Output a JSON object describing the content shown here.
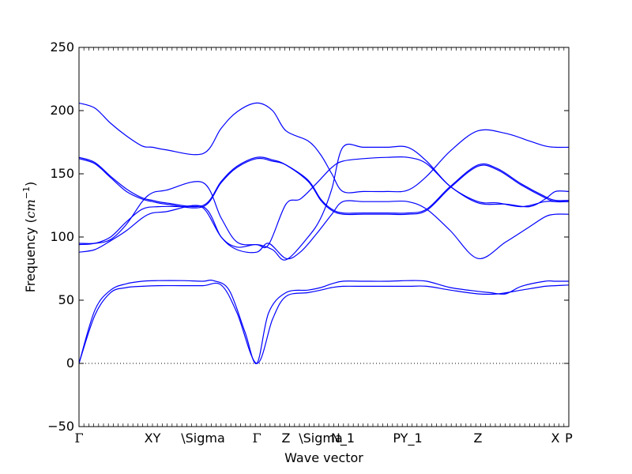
{
  "chart_data": {
    "type": "line",
    "title": "",
    "xlabel": "Wave vector",
    "ylabel": "Frequency (",
    "ylabel_unit": "cm",
    "ylabel_unit_exp": "−1",
    "ylabel_close": ")",
    "ylim": [
      -50,
      250
    ],
    "yticks": [
      -50,
      0,
      50,
      100,
      150,
      200,
      250
    ],
    "ytick_labels": [
      "−50",
      "0",
      "50",
      "100",
      "150",
      "200",
      "250"
    ],
    "xlim": [
      0,
      620
    ],
    "zero_line": true,
    "line_color": "#0000ff",
    "xticks": [
      {
        "x": 0,
        "label": "Γ"
      },
      {
        "x": 93,
        "label": "XY"
      },
      {
        "x": 157,
        "label": "\\Sigma"
      },
      {
        "x": 225,
        "label": "Γ"
      },
      {
        "x": 262,
        "label": "Z"
      },
      {
        "x": 306,
        "label": "\\Sigma"
      },
      {
        "x": 334,
        "label": "N_1"
      },
      {
        "x": 416,
        "label": "PY_1"
      },
      {
        "x": 505,
        "label": "Z"
      },
      {
        "x": 603,
        "label": "X"
      },
      {
        "x": 620,
        "label": "P"
      }
    ],
    "series": [
      {
        "x": [
          0,
          20,
          40,
          60,
          80,
          100,
          130,
          157,
          180,
          200,
          225,
          245,
          262,
          290,
          306,
          320,
          334,
          360,
          390,
          416,
          440,
          470,
          505,
          530,
          560,
          590,
          603,
          620
        ],
        "values": [
          0,
          38,
          56,
          60,
          61,
          61.5,
          61.5,
          61.5,
          62,
          40,
          0,
          35,
          53,
          56,
          58,
          60,
          61,
          61,
          61,
          61,
          61,
          58,
          55,
          55,
          58,
          61,
          61.5,
          62
        ]
      },
      {
        "x": [
          0,
          20,
          40,
          60,
          80,
          100,
          130,
          157,
          170,
          190,
          210,
          225,
          240,
          262,
          290,
          306,
          320,
          334,
          360,
          390,
          416,
          440,
          470,
          505,
          520,
          540,
          560,
          590,
          603,
          620
        ],
        "values": [
          0,
          42,
          58,
          63,
          65,
          65.5,
          65.5,
          65,
          65.5,
          58,
          25,
          0,
          40,
          56,
          58,
          60,
          63,
          65,
          65,
          65,
          65.5,
          65,
          60,
          57,
          56,
          55,
          61,
          65,
          65,
          65
        ]
      },
      {
        "x": [
          0,
          20,
          40,
          60,
          80,
          93,
          110,
          157,
          180,
          200,
          225,
          240,
          262,
          280,
          300,
          320,
          334,
          360,
          390,
          416,
          440,
          470,
          505,
          540,
          570,
          590,
          603,
          620
        ],
        "values": [
          88,
          90,
          97,
          105,
          115,
          119,
          120,
          124,
          100,
          90,
          88,
          95,
          83,
          88,
          102,
          118,
          128,
          128,
          128,
          128,
          122,
          105,
          83,
          96,
          108,
          116,
          118,
          118
        ]
      },
      {
        "x": [
          0,
          20,
          40,
          60,
          80,
          93,
          110,
          157,
          180,
          200,
          225,
          240,
          262,
          280,
          300,
          320,
          334,
          360,
          390,
          416,
          440,
          470,
          505,
          540,
          570,
          590,
          603,
          620
        ],
        "values": [
          95,
          95,
          98,
          110,
          128,
          135,
          137,
          143,
          115,
          96,
          94,
          94,
          126,
          130,
          142,
          155,
          160,
          162,
          163,
          163,
          158,
          140,
          127,
          126,
          124,
          130,
          136,
          136
        ]
      },
      {
        "x": [
          0,
          20,
          40,
          60,
          80,
          93,
          110,
          157,
          180,
          200,
          225,
          245,
          262,
          290,
          306,
          320,
          334,
          360,
          390,
          416,
          440,
          470,
          505,
          530,
          560,
          590,
          603,
          620
        ],
        "values": [
          162,
          158,
          147,
          136,
          130,
          128,
          126,
          124,
          143,
          155,
          162,
          160,
          157,
          145,
          130,
          122,
          119,
          119,
          119,
          119,
          122,
          140,
          157,
          154,
          142,
          132,
          129,
          129
        ]
      },
      {
        "x": [
          0,
          20,
          40,
          60,
          80,
          93,
          110,
          157,
          180,
          200,
          225,
          245,
          262,
          290,
          306,
          320,
          334,
          360,
          390,
          416,
          440,
          470,
          505,
          530,
          560,
          590,
          603,
          620
        ],
        "values": [
          163,
          159,
          148,
          138,
          131,
          129,
          127,
          125,
          144,
          156,
          163,
          161,
          157,
          144,
          129,
          121,
          118,
          118,
          118,
          118,
          121,
          139,
          156,
          153,
          141,
          131,
          128,
          128
        ]
      },
      {
        "x": [
          0,
          20,
          40,
          60,
          80,
          93,
          110,
          157,
          180,
          200,
          225,
          245,
          262,
          290,
          306,
          320,
          334,
          360,
          390,
          416,
          440,
          470,
          505,
          540,
          570,
          590,
          603,
          620
        ],
        "values": [
          206,
          202,
          190,
          180,
          172,
          171,
          169,
          166,
          186,
          199,
          206,
          200,
          184,
          176,
          165,
          150,
          136,
          136,
          136,
          137,
          148,
          168,
          184,
          182,
          176,
          172,
          171,
          171
        ]
      },
      {
        "x": [
          0,
          20,
          40,
          60,
          80,
          100,
          130,
          157,
          180,
          200,
          225,
          245,
          262,
          290,
          306,
          320,
          334,
          360,
          390,
          416,
          440,
          470,
          505,
          530,
          560,
          590,
          603,
          620
        ],
        "values": [
          94,
          95,
          100,
          112,
          122,
          124,
          124,
          123,
          100,
          92,
          94,
          90,
          82,
          100,
          115,
          138,
          171,
          171,
          171,
          171,
          160,
          140,
          128,
          127,
          124,
          128,
          128,
          128
        ]
      }
    ]
  }
}
